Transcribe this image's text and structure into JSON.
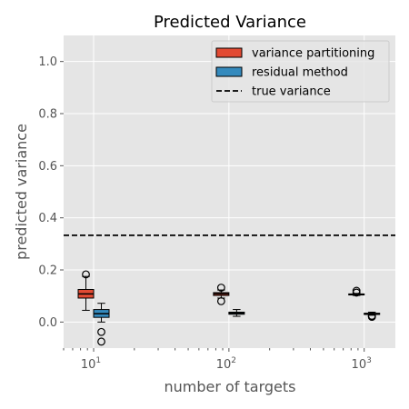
{
  "chart_data": {
    "type": "box",
    "title": "Predicted Variance",
    "xlabel": "number of targets",
    "ylabel": "predicted variance",
    "xscale": "log",
    "xlim": [
      6,
      1700
    ],
    "ylim": [
      -0.1,
      1.1
    ],
    "grid": true,
    "xticks": [
      {
        "value": 10,
        "base": "10",
        "exp": "1"
      },
      {
        "value": 100,
        "base": "10",
        "exp": "2"
      },
      {
        "value": 1000,
        "base": "10",
        "exp": "3"
      }
    ],
    "yticks": [
      {
        "value": 0.0,
        "label": "0.0"
      },
      {
        "value": 0.2,
        "label": "0.2"
      },
      {
        "value": 0.4,
        "label": "0.4"
      },
      {
        "value": 0.6,
        "label": "0.6"
      },
      {
        "value": 0.8,
        "label": "0.8"
      },
      {
        "value": 1.0,
        "label": "1.0"
      }
    ],
    "legend": {
      "placement": "upper right"
    },
    "series": [
      {
        "name": "variance partitioning",
        "color": "#E24A33",
        "boxes": [
          {
            "x": 10,
            "whislo": 0.045,
            "q1": 0.092,
            "med": 0.108,
            "q3": 0.125,
            "whishi": 0.175,
            "fliers": [
              0.183
            ]
          },
          {
            "x": 100,
            "whislo": 0.092,
            "q1": 0.102,
            "med": 0.108,
            "q3": 0.113,
            "whishi": 0.123,
            "fliers": [
              0.132,
              0.08
            ]
          },
          {
            "x": 1000,
            "whislo": 0.102,
            "q1": 0.104,
            "med": 0.106,
            "q3": 0.108,
            "whishi": 0.11,
            "fliers": [
              0.12,
              0.113
            ]
          }
        ]
      },
      {
        "name": "residual method",
        "color": "#348ABD",
        "boxes": [
          {
            "x": 10,
            "whislo": 0.0,
            "q1": 0.018,
            "med": 0.032,
            "q3": 0.048,
            "whishi": 0.072,
            "fliers": [
              -0.038,
              -0.075
            ]
          },
          {
            "x": 100,
            "whislo": 0.022,
            "q1": 0.03,
            "med": 0.034,
            "q3": 0.038,
            "whishi": 0.048,
            "fliers": []
          },
          {
            "x": 1000,
            "whislo": 0.026,
            "q1": 0.029,
            "med": 0.031,
            "q3": 0.034,
            "whishi": 0.038,
            "fliers": [
              0.022,
              0.02,
              0.024
            ]
          }
        ]
      }
    ],
    "reference_lines": [
      {
        "name": "true variance",
        "y": 0.333,
        "style": "dashed",
        "color": "#000000"
      }
    ],
    "colors": {
      "background": "#E5E5E5",
      "grid": "#FFFFFF",
      "tick": "#555555"
    }
  }
}
